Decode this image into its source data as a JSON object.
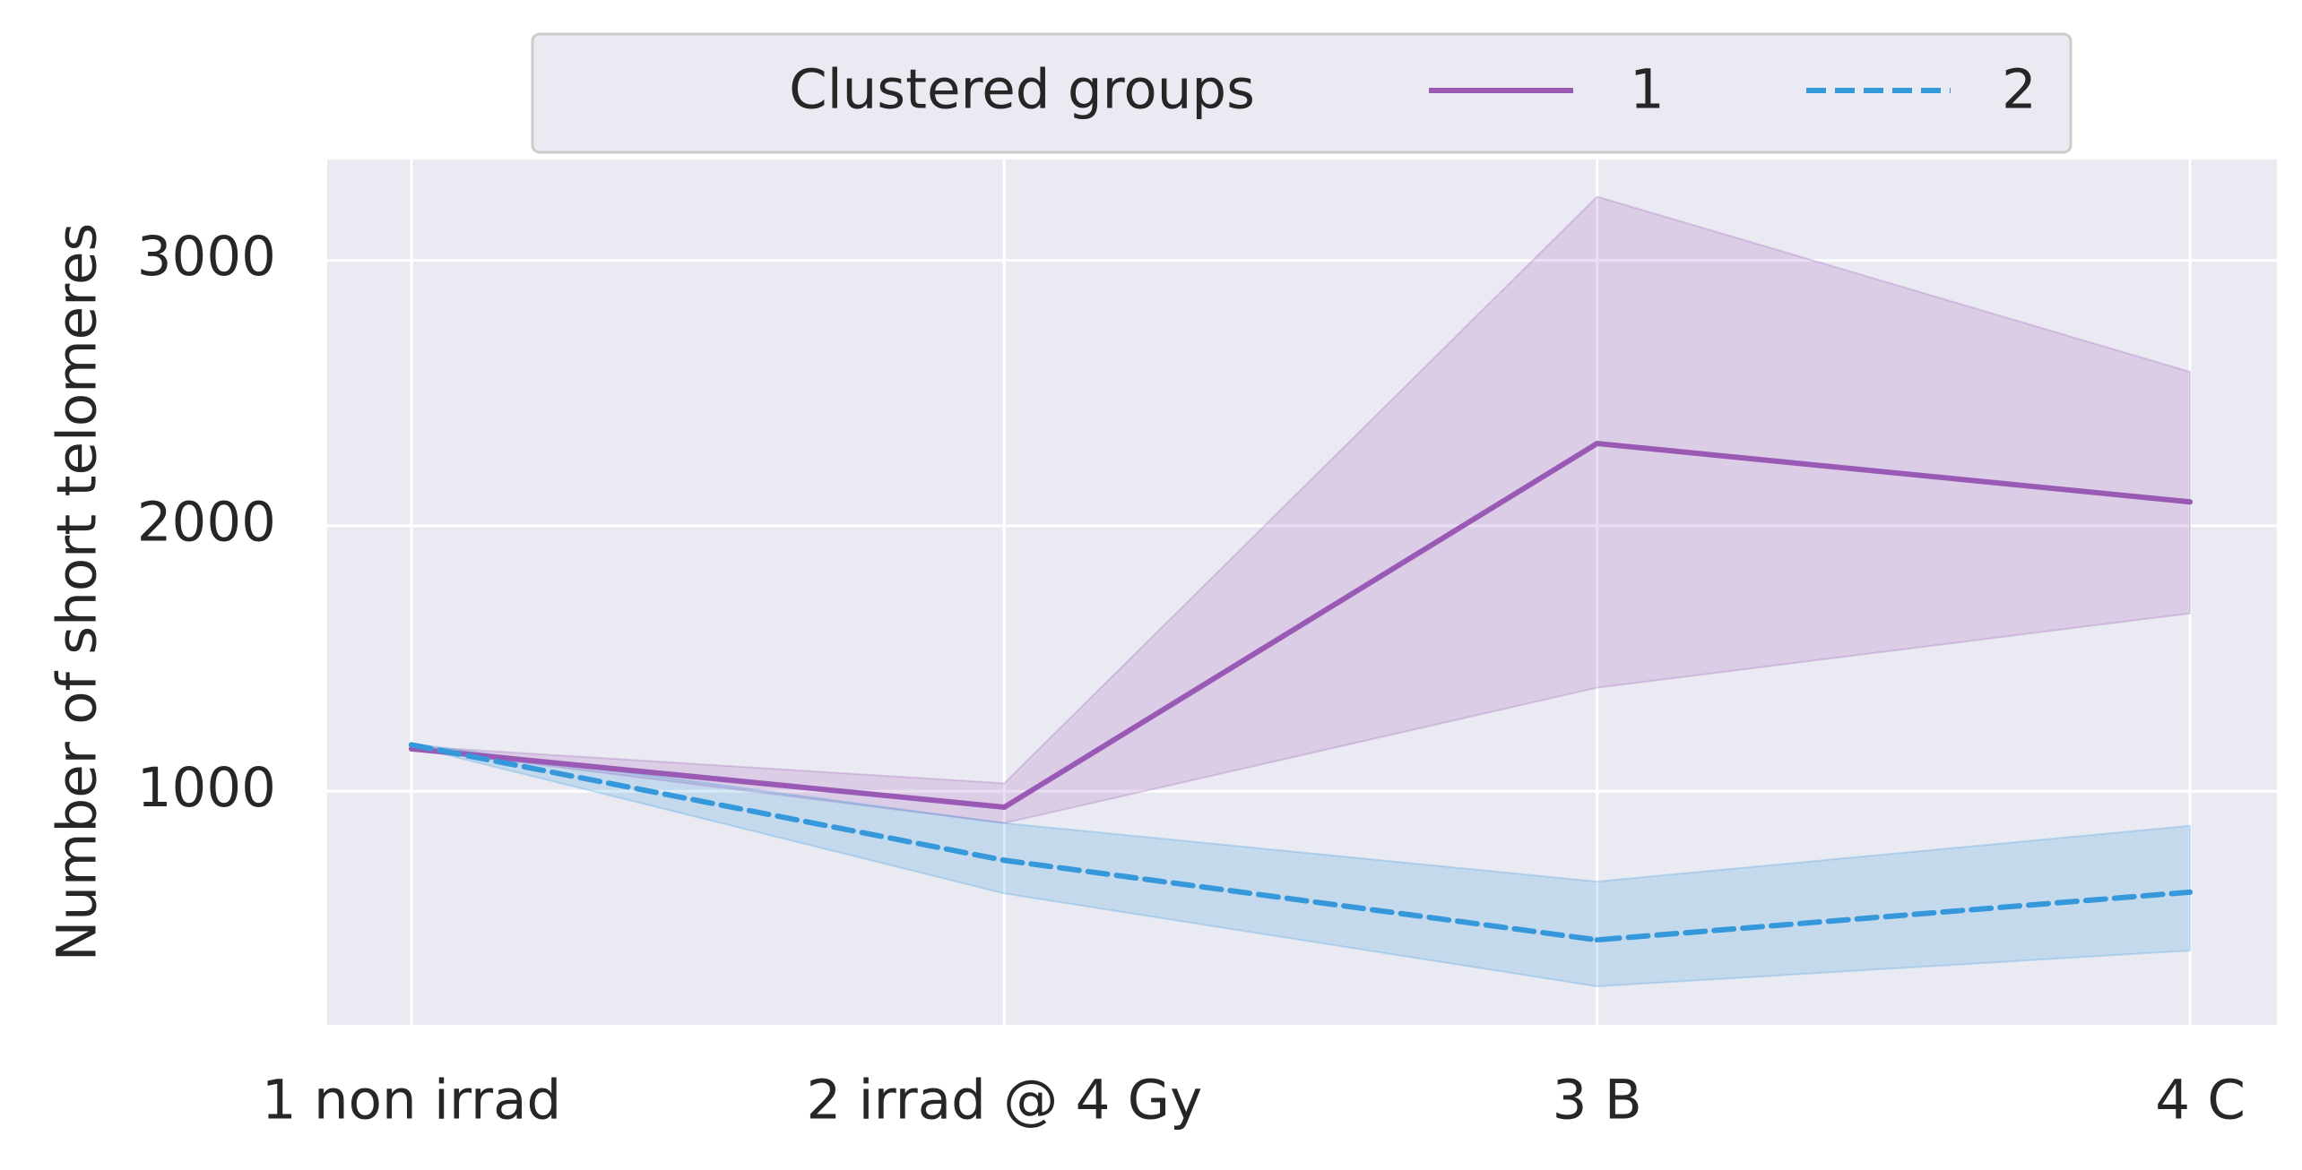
{
  "chart_data": {
    "type": "line",
    "categories": [
      "1 non irrad",
      "2 irrad @ 4 Gy",
      "3 B",
      "4 C"
    ],
    "xlabel": "",
    "ylabel": "Number of short telomeres",
    "ylim": [
      120,
      3380
    ],
    "yticks": [
      1000,
      2000,
      3000
    ],
    "grid": true,
    "legend": {
      "title": "Clustered groups",
      "placement": "top-center"
    },
    "series": [
      {
        "name": "1",
        "values": [
          1160,
          940,
          2310,
          2090
        ],
        "ci_lower": [
          1160,
          880,
          1390,
          1670
        ],
        "ci_upper": [
          1170,
          1030,
          3240,
          2580
        ],
        "color": "#9b59b6",
        "dash": "solid"
      },
      {
        "name": "2",
        "values": [
          1175,
          740,
          440,
          620
        ],
        "ci_lower": [
          1170,
          615,
          265,
          400
        ],
        "ci_upper": [
          1180,
          880,
          660,
          870
        ],
        "color": "#3498db",
        "dash": "dashed"
      }
    ]
  }
}
